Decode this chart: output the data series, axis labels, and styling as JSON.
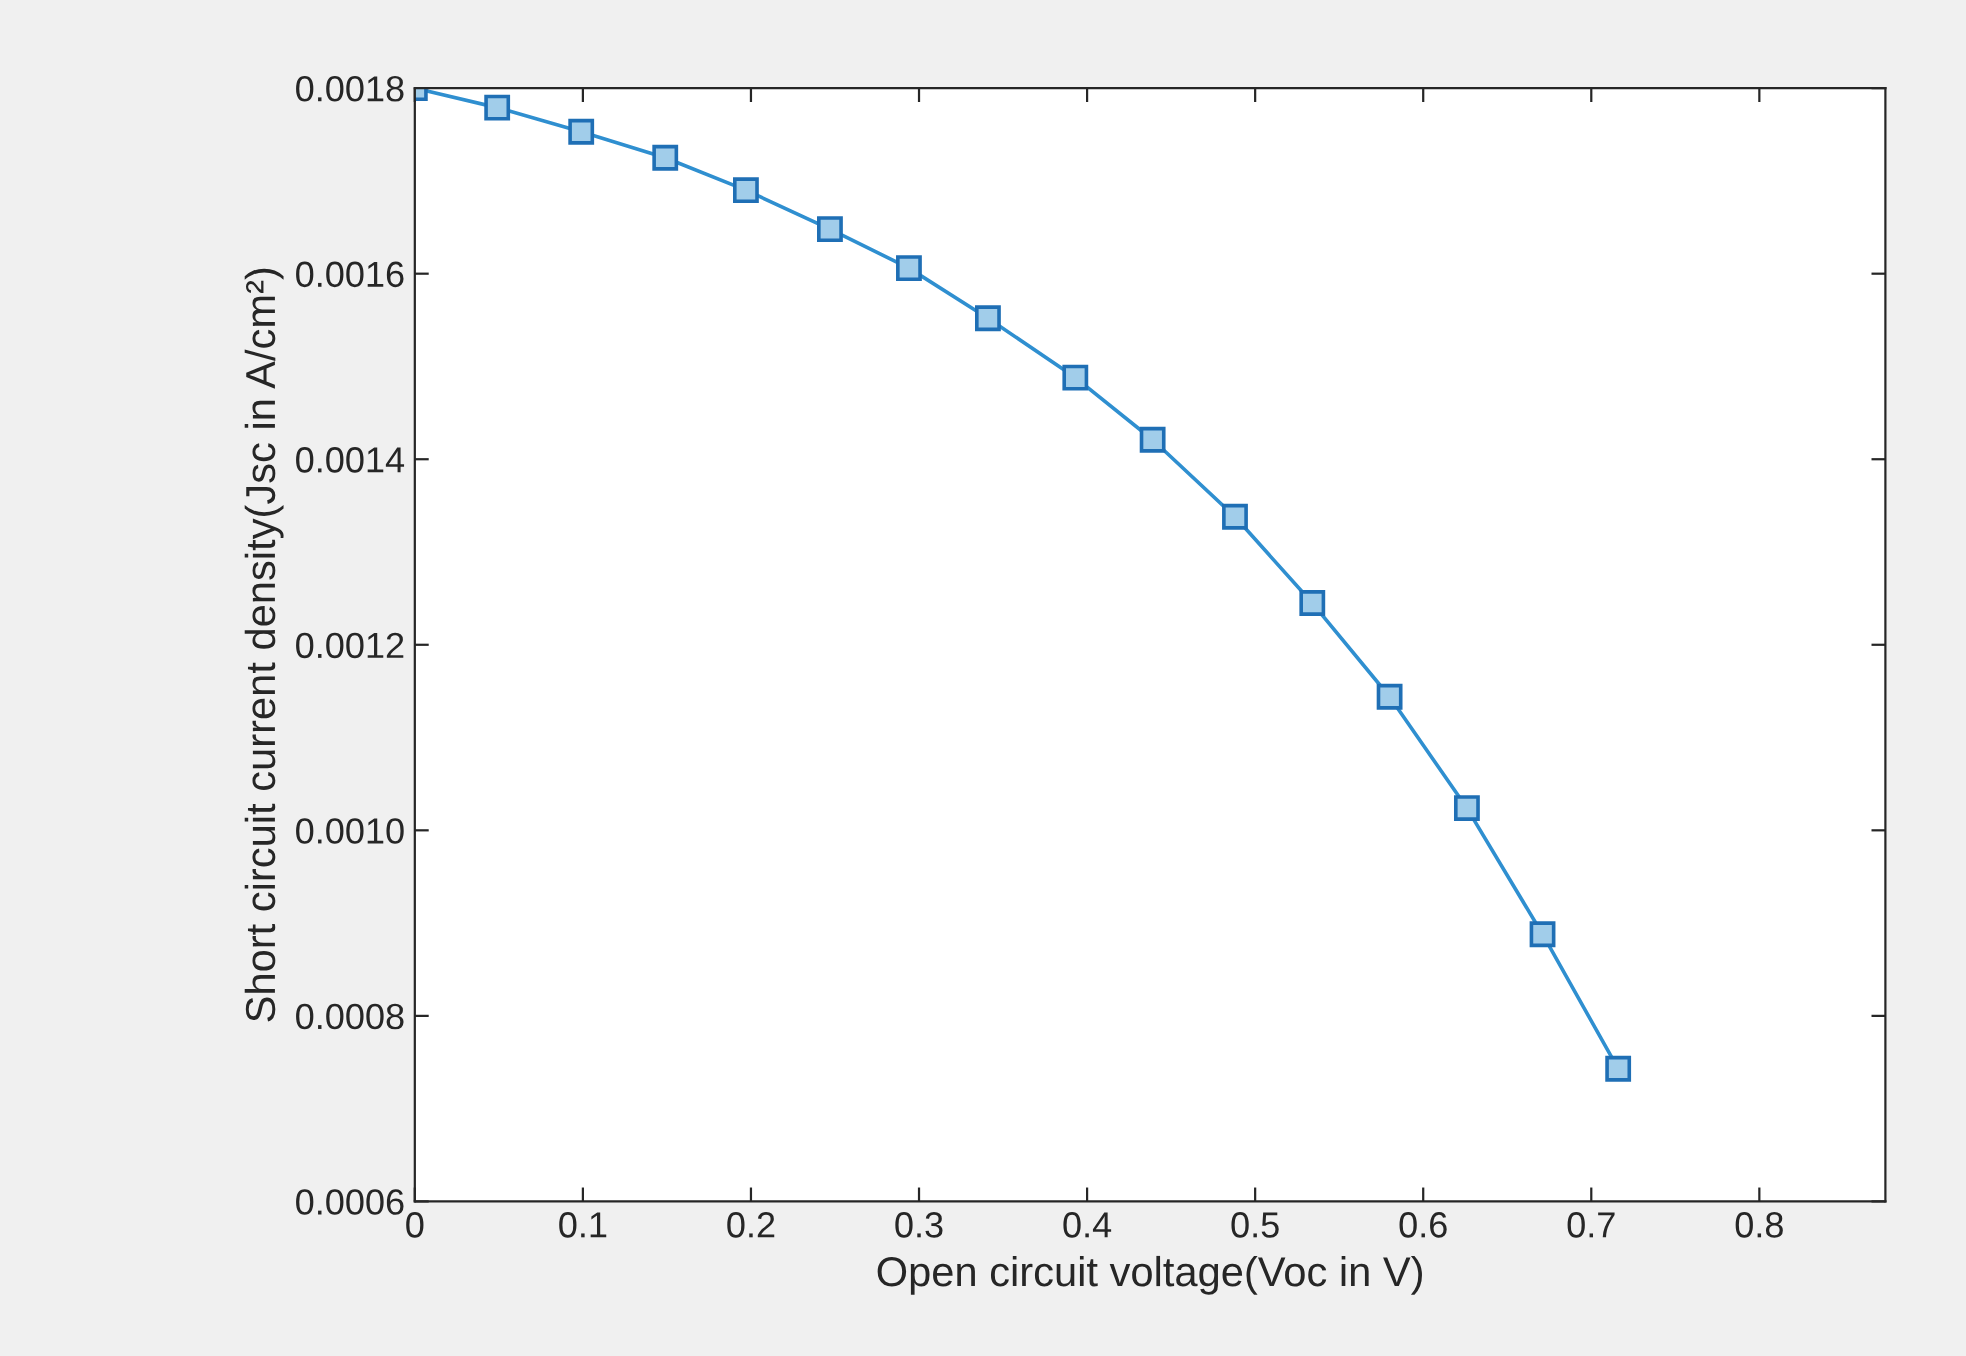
{
  "chart_data": {
    "type": "line",
    "xlabel": "Open circuit voltage(Voc in V)",
    "ylabel": "Short circuit current density(Jsc in A/cm²)",
    "x": [
      0,
      0.049,
      0.099,
      0.149,
      0.197,
      0.247,
      0.294,
      0.341,
      0.393,
      0.439,
      0.488,
      0.534,
      0.58,
      0.626,
      0.671,
      0.716
    ],
    "series": [
      {
        "color": "#2f8fd0",
        "values": [
          0.0018,
          0.001779,
          0.001753,
          0.001725,
          0.00169,
          0.001648,
          0.001606,
          0.001552,
          0.001488,
          0.001421,
          0.001338,
          0.001245,
          0.001144,
          0.001024,
          0.000888,
          0.000743
        ]
      }
    ],
    "xlim": [
      0,
      0.875
    ],
    "xticks": [
      0,
      0.1,
      0.2,
      0.3,
      0.4,
      0.5,
      0.6,
      0.7,
      0.8
    ],
    "ylim": [
      0.0006,
      0.0018
    ],
    "yticks": [
      {
        "value": 0.0006,
        "label": "0.0006"
      },
      {
        "value": 0.0008,
        "label": "0.0008"
      },
      {
        "value": 0.001,
        "label": "0.0010"
      },
      {
        "value": 0.0012,
        "label": "0.0012"
      },
      {
        "value": 0.0014,
        "label": "0.0014"
      },
      {
        "value": 0.0016,
        "label": "0.0016"
      },
      {
        "value": 0.0018,
        "label": "0.0018"
      }
    ],
    "marker": "square",
    "line_style": "solid",
    "grid": false,
    "legend": false
  }
}
